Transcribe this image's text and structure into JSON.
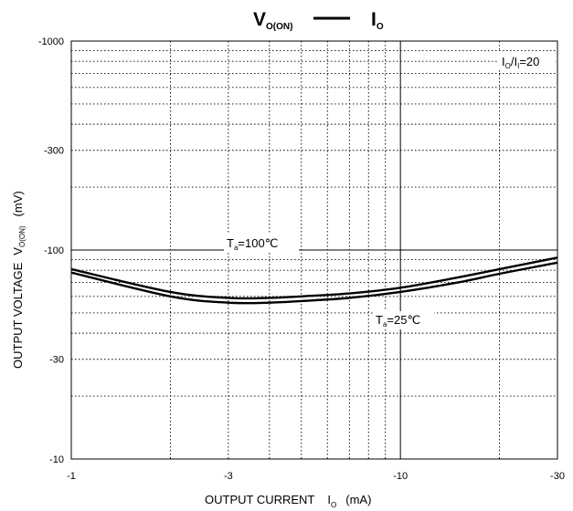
{
  "chart_data": {
    "type": "line",
    "title": {
      "prefix": "V",
      "prefix_sub": "O(ON)",
      "suffix": "I",
      "suffix_sub": "O"
    },
    "xlabel": {
      "text": "OUTPUT CURRENT",
      "symbol": "I",
      "symbol_sub": "O",
      "unit": "(mA)"
    },
    "ylabel": {
      "text": "OUTPUT VOLTAGE",
      "symbol": "V",
      "symbol_sub": "O(ON)",
      "unit": "(mV)"
    },
    "x_scale": "log",
    "y_scale": "log",
    "xlim": [
      -1,
      -30
    ],
    "ylim": [
      -10,
      -1000
    ],
    "x_ticks": [
      -1,
      -3,
      -10,
      -30
    ],
    "x_tick_labels": [
      "-1",
      "-3",
      "-10",
      "-30"
    ],
    "y_ticks": [
      -10,
      -30,
      -100,
      -300,
      -1000
    ],
    "y_tick_labels": [
      "-10",
      "-30",
      "-100",
      "-300",
      "-1000"
    ],
    "grid": true,
    "condition": {
      "a": "I",
      "a_sub": "O",
      "b": "I",
      "b_sub": "I",
      "value": "=20"
    },
    "series": [
      {
        "name": "Ta=100℃",
        "x": [
          -1,
          -2,
          -3,
          -4,
          -5,
          -7,
          -10,
          -15,
          -20,
          -30
        ],
        "y": [
          -81,
          -63,
          -59,
          -59,
          -60,
          -62,
          -66,
          -74,
          -81,
          -92
        ]
      },
      {
        "name": "Ta=25℃",
        "x": [
          -1,
          -2,
          -3,
          -4,
          -5,
          -7,
          -10,
          -15,
          -20,
          -30
        ],
        "y": [
          -78,
          -60,
          -56,
          -56,
          -57,
          -59,
          -63,
          -70,
          -77,
          -87
        ]
      }
    ],
    "annotations": [
      {
        "base": "T",
        "sub": "a",
        "text": "=100℃"
      },
      {
        "base": "T",
        "sub": "a",
        "text": "=25℃"
      }
    ]
  }
}
